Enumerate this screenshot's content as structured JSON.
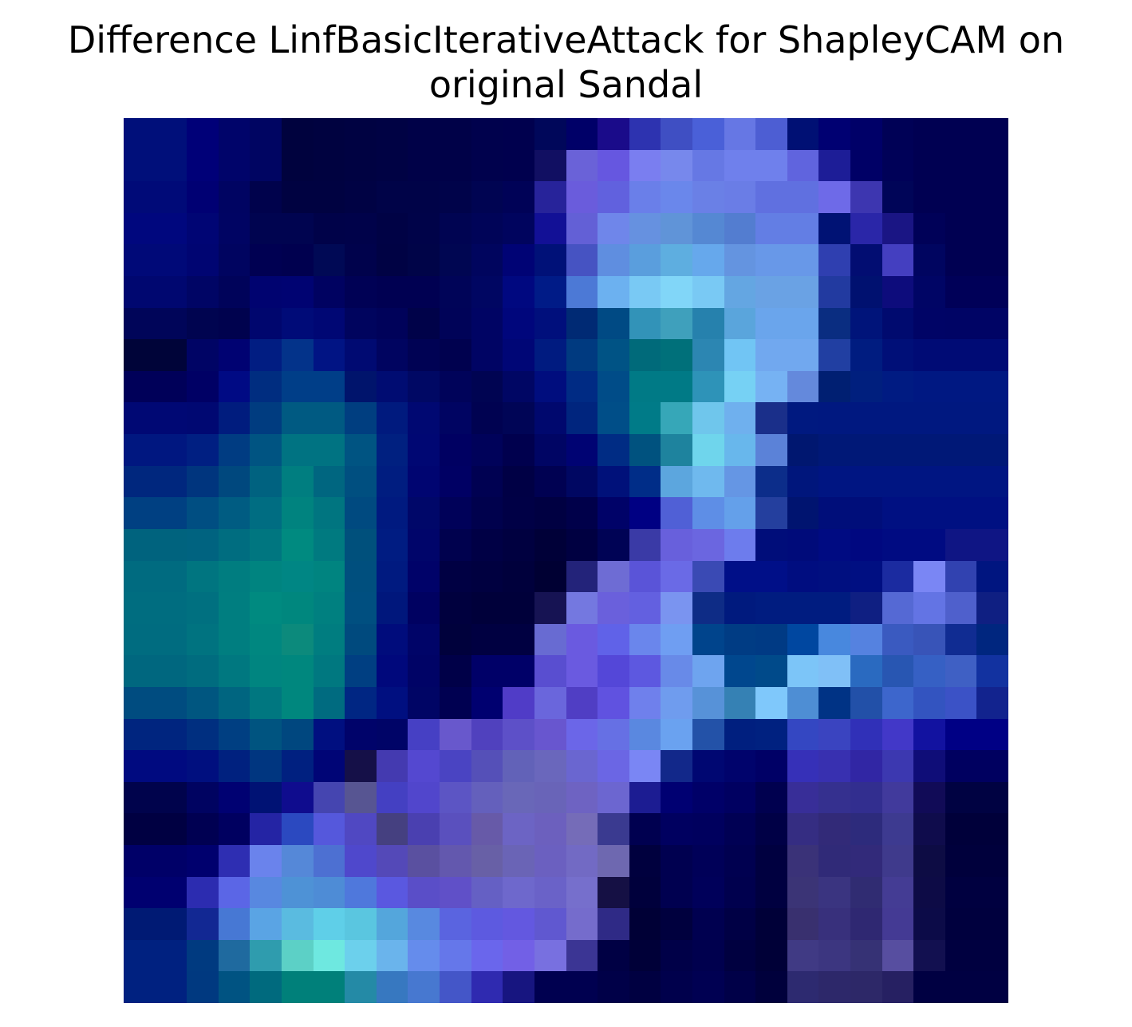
{
  "title": {
    "line1": "Difference LinfBasicIterativeAttack for ShapleyCAM on",
    "line2": "original Sandal"
  },
  "heatmap": {
    "grid": [
      28,
      28
    ],
    "colors": [
      [
        "#000f7a",
        "#000f7a",
        "#000078",
        "#00046a",
        "#000562",
        "#00023e",
        "#000240",
        "#000242",
        "#000244",
        "#000148",
        "#000148",
        "#00014d",
        "#00004e",
        "#00075a",
        "#000068",
        "#1a0b8a",
        "#2d33b0",
        "#3f4fc3",
        "#4a60d8",
        "#6677e4",
        "#4d5ed3",
        "#001074",
        "#000072",
        "#000068",
        "#000156",
        "#000052",
        "#000052",
        "#000052"
      ],
      [
        "#000f7a",
        "#000f7a",
        "#000078",
        "#00046a",
        "#000562",
        "#00023e",
        "#000240",
        "#000242",
        "#000244",
        "#000148",
        "#000148",
        "#00014d",
        "#00004e",
        "#110f62",
        "#6a62d8",
        "#6657e0",
        "#7a7ef0",
        "#7788ec",
        "#6678e4",
        "#6f80ec",
        "#6f80ec",
        "#6064de",
        "#1d1d97",
        "#000066",
        "#000158",
        "#000052",
        "#000052",
        "#000052"
      ],
      [
        "#000a78",
        "#000a78",
        "#000073",
        "#000462",
        "#00024c",
        "#000241",
        "#000241",
        "#000244",
        "#000348",
        "#000348",
        "#00034a",
        "#000452",
        "#000257",
        "#27239a",
        "#6a5cdc",
        "#6161de",
        "#6a7fe9",
        "#6a87eb",
        "#6a80e6",
        "#6a7de6",
        "#6070e0",
        "#6070e0",
        "#6e6ae8",
        "#3d36b0",
        "#000558",
        "#000052",
        "#000052",
        "#000052"
      ],
      [
        "#00077e",
        "#00077e",
        "#000574",
        "#000463",
        "#000450",
        "#000450",
        "#000249",
        "#00024a",
        "#000245",
        "#000349",
        "#000452",
        "#000458",
        "#00045e",
        "#121096",
        "#6360d6",
        "#6f86ea",
        "#6691e0",
        "#6094d8",
        "#5588d3",
        "#537dd0",
        "#637ee4",
        "#637ee4",
        "#001274",
        "#2a26a8",
        "#1a1584",
        "#000158",
        "#000052",
        "#000052"
      ],
      [
        "#000978",
        "#000978",
        "#000572",
        "#000460",
        "#000052",
        "#00004f",
        "#000955",
        "#00024c",
        "#000244",
        "#000448",
        "#000652",
        "#00055e",
        "#000375",
        "#001178",
        "#4653c2",
        "#5f8ee0",
        "#5a9edd",
        "#5eaee0",
        "#66a8ec",
        "#6494e0",
        "#6898e8",
        "#6898e8",
        "#2f3fb0",
        "#020d72",
        "#443fc0",
        "#000560",
        "#000052",
        "#000052"
      ],
      [
        "#000770",
        "#000770",
        "#000565",
        "#00035a",
        "#000370",
        "#000372",
        "#000261",
        "#000155",
        "#000052",
        "#000052",
        "#000458",
        "#000662",
        "#000880",
        "#001b87",
        "#4c79d6",
        "#6cb1f0",
        "#79c9f4",
        "#81d6f8",
        "#79c9f4",
        "#64a6e2",
        "#6aa2e4",
        "#6aa2e4",
        "#223aa0",
        "#001170",
        "#0d0c7c",
        "#000565",
        "#000058",
        "#000058"
      ],
      [
        "#000559",
        "#000559",
        "#000450",
        "#00024e",
        "#00066e",
        "#000b78",
        "#000774",
        "#00045e",
        "#00025a",
        "#000249",
        "#000358",
        "#000464",
        "#00067c",
        "#000f7c",
        "#002a74",
        "#004a84",
        "#3293b8",
        "#3fa0bc",
        "#2681ad",
        "#5aa5dc",
        "#6aa5ec",
        "#6aa5ec",
        "#0a2d81",
        "#00147a",
        "#000a6f",
        "#000466",
        "#000465",
        "#000465"
      ],
      [
        "#000439",
        "#000439",
        "#000465",
        "#000272",
        "#011d82",
        "#03338a",
        "#011484",
        "#000a72",
        "#000460",
        "#000254",
        "#00014f",
        "#000464",
        "#000676",
        "#001b80",
        "#003a80",
        "#005385",
        "#006a7a",
        "#00707a",
        "#2c86b2",
        "#71c5f4",
        "#71a8ef",
        "#71a8ef",
        "#213fa2",
        "#001c80",
        "#000f78",
        "#000b75",
        "#000b75",
        "#000b75"
      ],
      [
        "#000059",
        "#000059",
        "#000065",
        "#000a84",
        "#002d80",
        "#003e88",
        "#003e88",
        "#00146c",
        "#000c72",
        "#000864",
        "#00035a",
        "#000452",
        "#000664",
        "#000d7e",
        "#002b84",
        "#004c88",
        "#007a86",
        "#007a86",
        "#2e93b8",
        "#76d1f4",
        "#76b2f3",
        "#6489dc",
        "#001f72",
        "#001f7e",
        "#001b82",
        "#001882",
        "#001882",
        "#001882"
      ],
      [
        "#000874",
        "#000874",
        "#000872",
        "#001c7e",
        "#003c80",
        "#005a82",
        "#005a82",
        "#003e80",
        "#001a7e",
        "#000872",
        "#000462",
        "#000251",
        "#000556",
        "#00086e",
        "#00257e",
        "#004e88",
        "#007b88",
        "#36a7b8",
        "#6fc6ec",
        "#6fb0ee",
        "#1a2f8a",
        "#001980",
        "#001880",
        "#001880",
        "#001880",
        "#001880",
        "#001880",
        "#001880"
      ],
      [
        "#001780",
        "#001780",
        "#001f82",
        "#003c82",
        "#005482",
        "#007382",
        "#007382",
        "#005482",
        "#002080",
        "#000773",
        "#000062",
        "#00025a",
        "#00004e",
        "#000564",
        "#000373",
        "#002c84",
        "#00527f",
        "#1e839e",
        "#6fd5ec",
        "#68b7ec",
        "#5b82d8",
        "#001770",
        "#001877",
        "#001877",
        "#001877",
        "#001877",
        "#001877",
        "#001877"
      ],
      [
        "#00277e",
        "#00277e",
        "#00357e",
        "#00487e",
        "#006280",
        "#007e80",
        "#006680",
        "#004f80",
        "#001d80",
        "#000571",
        "#000064",
        "#000152",
        "#000045",
        "#000152",
        "#000762",
        "#00117a",
        "#002d88",
        "#5ca6de",
        "#6fb9ee",
        "#6596e4",
        "#0c2d8a",
        "#00167c",
        "#001582",
        "#001582",
        "#001582",
        "#001582",
        "#001582",
        "#001582"
      ],
      [
        "#004082",
        "#004082",
        "#004e82",
        "#005c82",
        "#006d82",
        "#00837f",
        "#007580",
        "#004a80",
        "#001a80",
        "#000769",
        "#000159",
        "#00014d",
        "#000046",
        "#000042",
        "#00004a",
        "#000268",
        "#000083",
        "#5060d6",
        "#5e8ee6",
        "#64a0ea",
        "#243f9e",
        "#001470",
        "#000e7a",
        "#000e7a",
        "#001082",
        "#001082",
        "#001082",
        "#001082"
      ],
      [
        "#00637e",
        "#00637e",
        "#006380",
        "#006d80",
        "#007680",
        "#008a80",
        "#007a80",
        "#00507c",
        "#001c82",
        "#00056a",
        "#00014e",
        "#000045",
        "#000040",
        "#000038",
        "#000041",
        "#000355",
        "#3a3aa6",
        "#6860dc",
        "#6b66e0",
        "#6d7ced",
        "#000d7a",
        "#000b7a",
        "#000b82",
        "#000880",
        "#000b82",
        "#000b82",
        "#0f1584",
        "#0f1584"
      ],
      [
        "#006b80",
        "#006b80",
        "#007580",
        "#007d80",
        "#008480",
        "#008684",
        "#008480",
        "#004f7e",
        "#001a80",
        "#000269",
        "#000043",
        "#000040",
        "#00003c",
        "#000033",
        "#23237a",
        "#6e6cd4",
        "#5a54d8",
        "#6a6ae6",
        "#3a4ab4",
        "#000f88",
        "#000f88",
        "#000d80",
        "#000f80",
        "#000f82",
        "#1b2ba0",
        "#7a86f4",
        "#3142b0",
        "#001580"
      ],
      [
        "#006d80",
        "#006d80",
        "#007080",
        "#007e80",
        "#008a80",
        "#00877e",
        "#008080",
        "#004f80",
        "#00177c",
        "#000161",
        "#00003e",
        "#00003a",
        "#00003a",
        "#161353",
        "#7478e0",
        "#6a60dc",
        "#6360e0",
        "#7a94f0",
        "#0e2c86",
        "#001a7e",
        "#001c80",
        "#001c80",
        "#001c80",
        "#0f1f82",
        "#5569d4",
        "#6374e4",
        "#4f60cc",
        "#0f1f82"
      ],
      [
        "#006c80",
        "#006c80",
        "#007380",
        "#007e80",
        "#008780",
        "#0c8a7c",
        "#007d80",
        "#004a7e",
        "#000c7c",
        "#000468",
        "#00013c",
        "#000041",
        "#000041",
        "#686bd2",
        "#6a5ae0",
        "#6062e8",
        "#6a86ec",
        "#6f9ef2",
        "#00448c",
        "#003c84",
        "#003a84",
        "#0047a0",
        "#4888de",
        "#5582e0",
        "#3a5ac0",
        "#3854b8",
        "#102c92",
        "#00267f"
      ],
      [
        "#00677f",
        "#00677f",
        "#006c7f",
        "#007880",
        "#008580",
        "#00877e",
        "#007880",
        "#003f82",
        "#00087c",
        "#000366",
        "#000048",
        "#000068",
        "#000068",
        "#594ed0",
        "#6a5ae0",
        "#5447d8",
        "#5d58e0",
        "#688ae8",
        "#6ea4ef",
        "#00478e",
        "#004a8a",
        "#7cc5f8",
        "#80c0f7",
        "#2a6ac0",
        "#2856b2",
        "#3660c4",
        "#3f60c4",
        "#1232a0"
      ],
      [
        "#004c80",
        "#004c80",
        "#005680",
        "#006580",
        "#007780",
        "#00877e",
        "#006b80",
        "#002683",
        "#000f80",
        "#000565",
        "#000051",
        "#000070",
        "#503cc7",
        "#6a66dc",
        "#503ec4",
        "#6052e0",
        "#6f80ec",
        "#6f9cee",
        "#5792d8",
        "#3581b4",
        "#7fc8fb",
        "#4e8ed4",
        "#003385",
        "#2250a8",
        "#3d66cc",
        "#3354c0",
        "#3b52c6",
        "#12238e"
      ],
      [
        "#00257f",
        "#00257f",
        "#002f80",
        "#003f82",
        "#005480",
        "#00477f",
        "#000f80",
        "#00036a",
        "#000467",
        "#4640c4",
        "#6858cc",
        "#5041be",
        "#5d50c8",
        "#6856cf",
        "#6b66e8",
        "#6670e4",
        "#5a88e0",
        "#6aa2f0",
        "#2352a8",
        "#001f7f",
        "#002180",
        "#3447c2",
        "#3a44c0",
        "#3030b8",
        "#4238c8",
        "#1212a0",
        "#000085",
        "#000085"
      ],
      [
        "#000a80",
        "#000a80",
        "#000f7f",
        "#00217f",
        "#003680",
        "#002080",
        "#000576",
        "#151048",
        "#443ab0",
        "#5448d0",
        "#4a44c2",
        "#5550b8",
        "#6262b8",
        "#6a67bc",
        "#6a66d0",
        "#6b66e4",
        "#7a86f4",
        "#12288a",
        "#000772",
        "#00036c",
        "#000066",
        "#3630b8",
        "#3830b0",
        "#3126a4",
        "#3c38b0",
        "#0f0d78",
        "#000060",
        "#000060"
      ],
      [
        "#00034c",
        "#00034c",
        "#000361",
        "#000172",
        "#001274",
        "#0f0c8e",
        "#4545b0",
        "#575592",
        "#4440c2",
        "#5146cc",
        "#5c55c4",
        "#6460bc",
        "#6967b8",
        "#6964b8",
        "#6e63c2",
        "#6c66d0",
        "#1c1c92",
        "#000072",
        "#000068",
        "#000061",
        "#00004f",
        "#382e98",
        "#35308f",
        "#322e8f",
        "#413a9c",
        "#110b57",
        "#000242",
        "#000242"
      ],
      [
        "#000042",
        "#000042",
        "#000052",
        "#000060",
        "#2424a4",
        "#2b49c0",
        "#5558dc",
        "#5048c2",
        "#454080",
        "#4a40b0",
        "#5a50be",
        "#675aa8",
        "#6c64c4",
        "#6c60be",
        "#756cb8",
        "#3a3a90",
        "#000050",
        "#000060",
        "#00005e",
        "#000054",
        "#000046",
        "#352d82",
        "#322a78",
        "#2d2b7c",
        "#3d3a90",
        "#0f0c4c",
        "#00003a",
        "#00003a"
      ],
      [
        "#000068",
        "#000068",
        "#00006e",
        "#2e2eb2",
        "#6a83ec",
        "#5588d8",
        "#4d70d2",
        "#4f48cc",
        "#5449b8",
        "#5a50a0",
        "#6358ae",
        "#6860a6",
        "#6a64b6",
        "#6b60c0",
        "#726ac4",
        "#6e68b0",
        "#00003e",
        "#000050",
        "#000058",
        "#000050",
        "#000040",
        "#3a3278",
        "#302a78",
        "#322a7a",
        "#3f3a8c",
        "#0d0c44",
        "#00003c",
        "#00003c"
      ],
      [
        "#000070",
        "#000070",
        "#2c2cb0",
        "#5b66e6",
        "#5888e0",
        "#4e92d6",
        "#4e8cd6",
        "#4f78dc",
        "#5a58e0",
        "#5a4ec8",
        "#6050c8",
        "#6560c4",
        "#6e68cc",
        "#6a62c8",
        "#766fcc",
        "#151044",
        "#00003c",
        "#000050",
        "#00005a",
        "#00004e",
        "#000040",
        "#3b3476",
        "#3a3480",
        "#302c72",
        "#443c94",
        "#0d0b46",
        "#000040",
        "#000040"
      ],
      [
        "#001a74",
        "#001a74",
        "#122893",
        "#4778d4",
        "#5aa4e4",
        "#5abbe0",
        "#5fcfe8",
        "#5ac6e0",
        "#54a6dc",
        "#5889e0",
        "#5a64e0",
        "#5d5ae0",
        "#6358e0",
        "#6058d0",
        "#756ccc",
        "#2f2a86",
        "#000036",
        "#00003e",
        "#000050",
        "#000045",
        "#000038",
        "#39306f",
        "#38307c",
        "#2f2872",
        "#443a94",
        "#0c0b48",
        "#00003e",
        "#00003e"
      ],
      [
        "#002180",
        "#002180",
        "#003a80",
        "#1f6a9f",
        "#2f9cae",
        "#5cd0c6",
        "#6ee8e0",
        "#6cd0ec",
        "#6ab4ec",
        "#658cec",
        "#6577ea",
        "#6a66ec",
        "#7260e6",
        "#7870e0",
        "#3b3594",
        "#000044",
        "#000038",
        "#000048",
        "#00004e",
        "#000040",
        "#000037",
        "#403a84",
        "#3c3680",
        "#363275",
        "#574ea0",
        "#121050",
        "#000040",
        "#000040"
      ],
      [
        "#002180",
        "#002180",
        "#003980",
        "#005382",
        "#006a7e",
        "#00807a",
        "#00807a",
        "#248aa6",
        "#3778c0",
        "#4778d0",
        "#4456c8",
        "#2f2ab0",
        "#171580",
        "#000050",
        "#000050",
        "#000048",
        "#000041",
        "#00004c",
        "#000052",
        "#000048",
        "#00003c",
        "#2d2a70",
        "#2d286a",
        "#2d2868",
        "#262062",
        "#000042",
        "#000042",
        "#000042"
      ]
    ]
  }
}
